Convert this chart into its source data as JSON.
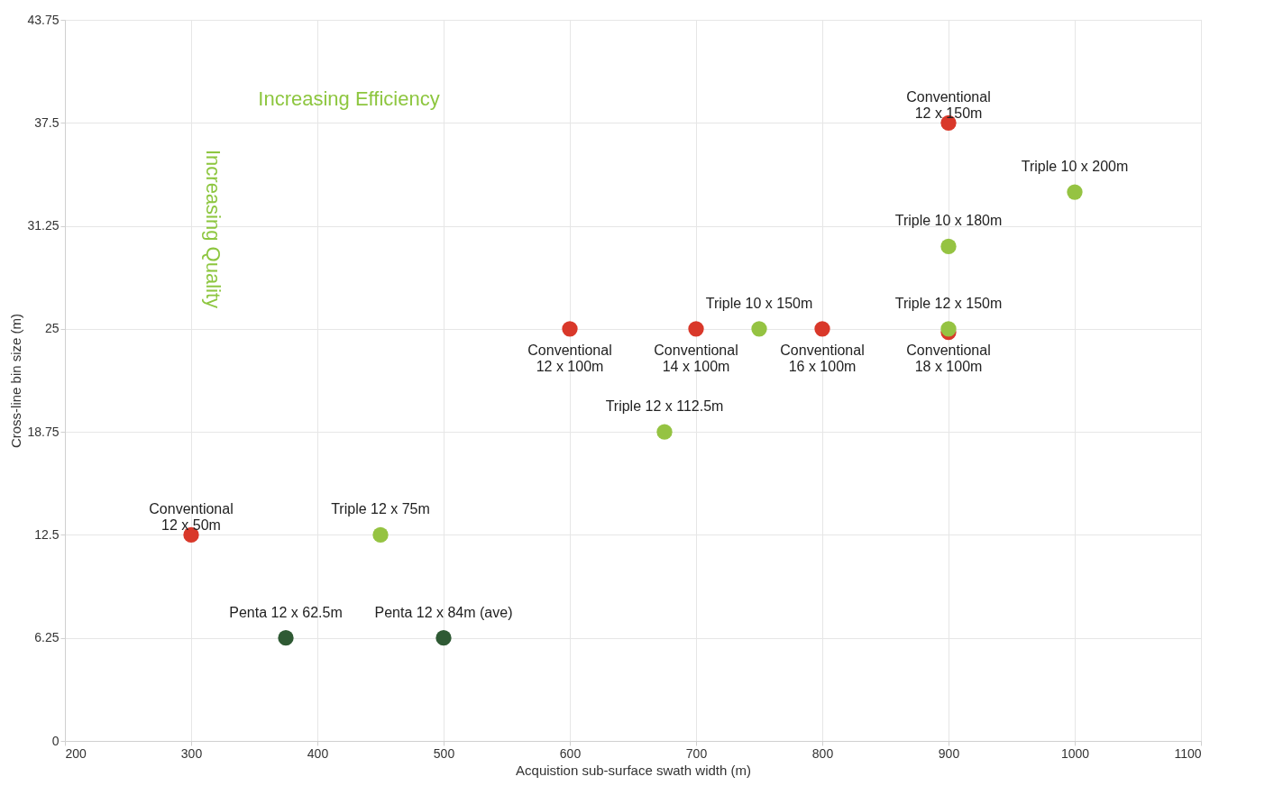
{
  "chart_data": {
    "type": "scatter",
    "xlabel": "Acquistion sub-surface swath width (m)",
    "ylabel": "Cross-line bin size (m)",
    "xlim": [
      200,
      1100
    ],
    "xticks": [
      200,
      300,
      400,
      500,
      600,
      700,
      800,
      900,
      1000,
      1100
    ],
    "ylim": [
      0,
      43.75
    ],
    "yticks": [
      0,
      6.25,
      12.5,
      18.75,
      25,
      31.25,
      37.5,
      43.75
    ],
    "grid": true,
    "marker": "circle",
    "series": [
      {
        "color": "#d9382a",
        "x": [
          900,
          600,
          700,
          800,
          900,
          300
        ],
        "values": [
          37.5,
          25,
          25,
          25,
          24.8,
          12.5
        ]
      },
      {
        "color": "#95c342",
        "x": [
          1000,
          900,
          750,
          900,
          675,
          450
        ],
        "values": [
          33.3,
          30,
          25,
          25,
          18.75,
          12.5
        ]
      },
      {
        "color": "#2f5a34",
        "x": [
          375,
          500
        ],
        "values": [
          6.25,
          6.25
        ]
      }
    ],
    "annotations": [
      {
        "text": "Conventional\n12 x 150m",
        "x": 900,
        "y": 37.5
      },
      {
        "text": "Triple 10 x 200m",
        "x": 1000,
        "y": 33.3
      },
      {
        "text": "Triple 10 x 180m",
        "x": 900,
        "y": 30
      },
      {
        "text": "Triple 10 x 150m",
        "x": 750,
        "y": 25
      },
      {
        "text": "Triple 12 x 150m",
        "x": 900,
        "y": 25
      },
      {
        "text": "Conventional\n12 x 100m",
        "x": 600,
        "y": 25
      },
      {
        "text": "Conventional\n14 x 100m",
        "x": 700,
        "y": 25
      },
      {
        "text": "Conventional\n16 x 100m",
        "x": 800,
        "y": 25
      },
      {
        "text": "Conventional\n18 x 100m",
        "x": 900,
        "y": 25
      },
      {
        "text": "Triple 12 x 112.5m",
        "x": 675,
        "y": 18.75
      },
      {
        "text": "Conventional\n12 x 50m",
        "x": 300,
        "y": 12.5
      },
      {
        "text": "Triple 12 x 75m",
        "x": 450,
        "y": 12.5
      },
      {
        "text": "Penta 12 x 62.5m",
        "x": 375,
        "y": 6.25
      },
      {
        "text": "Penta 12 x 84m (ave)",
        "x": 500,
        "y": 6.25
      },
      "Increasing Efficiency",
      "Increasing Quality"
    ]
  }
}
